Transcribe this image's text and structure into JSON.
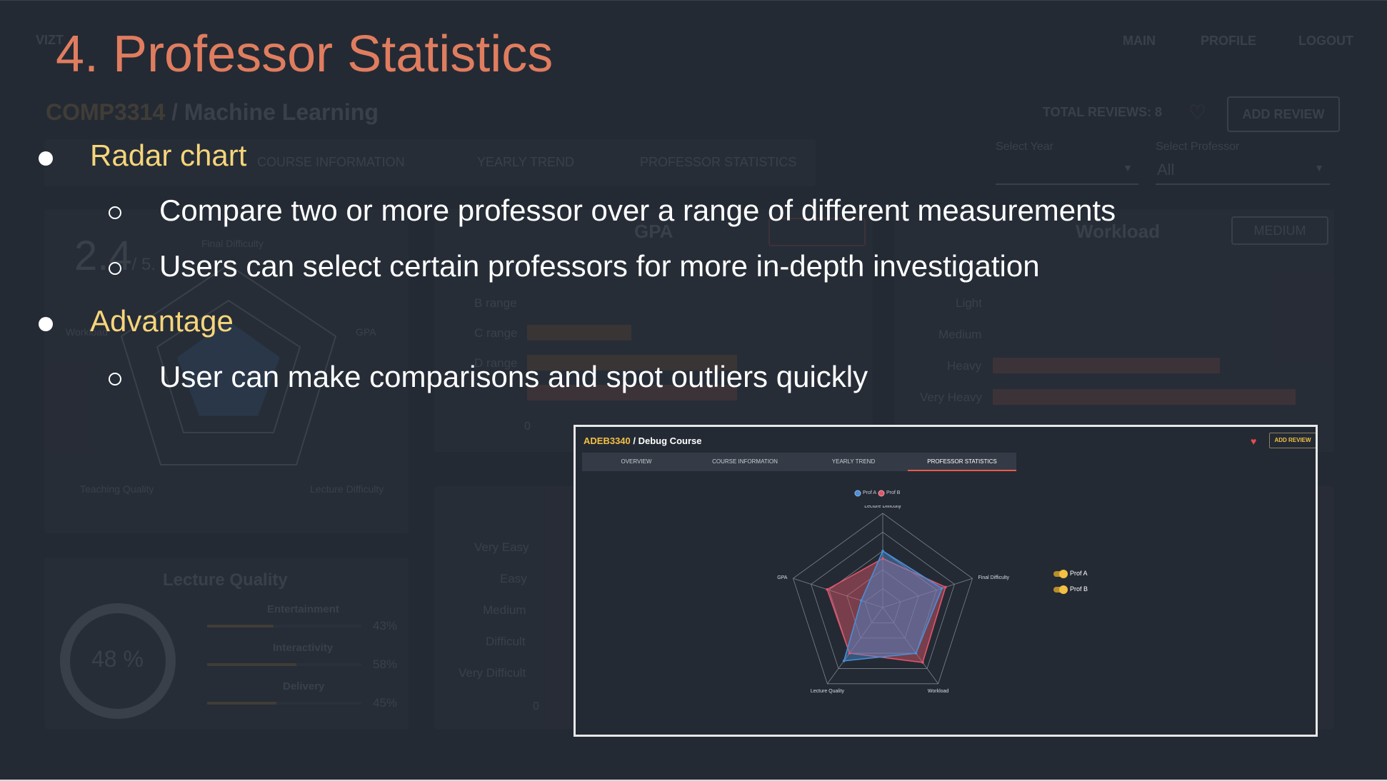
{
  "slide": {
    "title": "4. Professor Statistics",
    "bullets": [
      {
        "text": "Radar chart",
        "sub": [
          "Compare two or more professor over a range of different measurements",
          "Users can select certain professors for more in-depth investigation"
        ]
      },
      {
        "text": "Advantage",
        "sub": [
          "User can make comparisons and spot outliers quickly"
        ]
      }
    ]
  },
  "background_app": {
    "brand": "VIZT",
    "nav": [
      "MAIN",
      "PROFILE",
      "LOGOUT"
    ],
    "course_code": "COMP3314",
    "course_name": "Machine Learning",
    "total_reviews": "TOTAL REVIEWS: 8",
    "add_review": "ADD REVIEW",
    "tabs": [
      "OVERVIEW",
      "COURSE INFORMATION",
      "YEARLY TREND",
      "PROFESSOR STATISTICS"
    ],
    "select_year_label": "Select Year",
    "select_professor_label": "Select Professor",
    "select_professor_value": "All",
    "score": "2.4",
    "score_max": "/ 5.",
    "radar_labels": [
      "Final Difficulty",
      "GPA",
      "Lecture Difficulty",
      "Teaching Quality",
      "Workload"
    ],
    "gpa_card": {
      "title": "GPA",
      "categories": [
        "B range",
        "C range",
        "D range"
      ],
      "axis_zero": "0"
    },
    "workload_card": {
      "title": "Workload",
      "badge": "MEDIUM",
      "categories": [
        "Light",
        "Medium",
        "Heavy",
        "Very Heavy"
      ]
    },
    "difficulty_card": {
      "categories": [
        "Very Easy",
        "Easy",
        "Medium",
        "Difficult",
        "Very Difficult"
      ],
      "axis_zero": "0"
    },
    "lecture_quality": {
      "title": "Lecture Quality",
      "percent": "48 %",
      "items": [
        {
          "label": "Entertainment",
          "value": "43%",
          "fill": 0.43
        },
        {
          "label": "Interactivity",
          "value": "58%",
          "fill": 0.58
        },
        {
          "label": "Delivery",
          "value": "45%",
          "fill": 0.45
        }
      ]
    }
  },
  "screenshot": {
    "course_code": "ADEB3340",
    "course_name": "Debug Course",
    "add_review": "ADD REVIEW",
    "tabs": [
      "OVERVIEW",
      "COURSE INFORMATION",
      "YEARLY TREND",
      "PROFESSOR STATISTICS"
    ],
    "active_tab": "PROFESSOR STATISTICS",
    "toggles": [
      {
        "label": "Prof A",
        "on": true
      },
      {
        "label": "Prof B",
        "on": true
      }
    ],
    "colors": {
      "prof_a": "#4a8fd6",
      "prof_b": "#e0566b",
      "accent": "#f3c044"
    }
  },
  "chart_data": {
    "type": "radar",
    "axes": [
      "Lecture Difficulty",
      "Final Difficulty",
      "Workload",
      "Lecture Quality",
      "GPA"
    ],
    "range": [
      0,
      5
    ],
    "grid": true,
    "legend_placement": "top",
    "series": [
      {
        "name": "Prof A",
        "values": [
          3.0,
          3.3,
          3.0,
          3.5,
          1.2
        ]
      },
      {
        "name": "Prof B",
        "values": [
          2.6,
          3.5,
          3.6,
          3.0,
          3.1
        ]
      }
    ]
  }
}
